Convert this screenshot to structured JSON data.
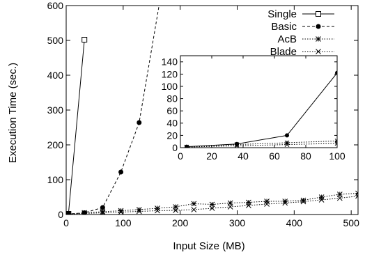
{
  "chart_data": [
    {
      "type": "line",
      "xlabel": "Input Size (MB)",
      "ylabel": "Execution Time (sec.)",
      "xlim": [
        0,
        512
      ],
      "ylim": [
        0,
        600
      ],
      "xticks": [
        0,
        100,
        200,
        300,
        400,
        500
      ],
      "yticks": [
        0,
        100,
        200,
        300,
        400,
        500,
        600
      ],
      "grid": false,
      "legend_position": "top-right",
      "series": [
        {
          "name": "Single",
          "marker": "open-square",
          "dash": "solid",
          "points": [
            [
              1,
              0
            ],
            [
              2,
              1
            ],
            [
              4,
              2
            ],
            [
              32,
              502
            ]
          ]
        },
        {
          "name": "Basic",
          "marker": "filled-circle",
          "dash": "dashed",
          "points": [
            [
              1,
              0
            ],
            [
              2,
              1
            ],
            [
              4,
              1.5
            ],
            [
              32,
              5
            ],
            [
              64,
              20
            ],
            [
              96,
              122
            ],
            [
              128,
              264
            ],
            [
              165,
              620
            ]
          ]
        },
        {
          "name": "AcB",
          "marker": "star",
          "dash": "dotted",
          "points": [
            [
              1,
              0
            ],
            [
              2,
              1
            ],
            [
              4,
              1
            ],
            [
              32,
              5
            ],
            [
              64,
              8
            ],
            [
              96,
              11
            ],
            [
              128,
              14
            ],
            [
              160,
              18
            ],
            [
              192,
              22
            ],
            [
              224,
              31
            ],
            [
              256,
              29
            ],
            [
              288,
              33
            ],
            [
              320,
              35
            ],
            [
              352,
              38
            ],
            [
              384,
              38
            ],
            [
              416,
              41
            ],
            [
              448,
              50
            ],
            [
              480,
              58
            ],
            [
              512,
              61
            ]
          ]
        },
        {
          "name": "Blade",
          "marker": "cross",
          "dash": "dotted",
          "points": [
            [
              1,
              0
            ],
            [
              2,
              1
            ],
            [
              4,
              1
            ],
            [
              32,
              3
            ],
            [
              64,
              5
            ],
            [
              96,
              7
            ],
            [
              128,
              9
            ],
            [
              160,
              11
            ],
            [
              192,
              12
            ],
            [
              224,
              14
            ],
            [
              256,
              18
            ],
            [
              288,
              22
            ],
            [
              320,
              26
            ],
            [
              352,
              30
            ],
            [
              384,
              33
            ],
            [
              416,
              37
            ],
            [
              448,
              42
            ],
            [
              480,
              47
            ],
            [
              512,
              53
            ]
          ]
        }
      ]
    },
    {
      "type": "line",
      "role": "inset",
      "xlim": [
        0,
        100
      ],
      "ylim": [
        0,
        150
      ],
      "xticks": [
        0,
        20,
        40,
        60,
        80,
        100
      ],
      "yticks": [
        0,
        20,
        40,
        60,
        80,
        100,
        120,
        140
      ],
      "grid": false,
      "series": [
        {
          "name": "Basic",
          "marker": "filled-circle",
          "dash": "solid",
          "points": [
            [
              4,
              1.5
            ],
            [
              36,
              6
            ],
            [
              68,
              20
            ],
            [
              100,
              122
            ]
          ]
        },
        {
          "name": "AcB",
          "marker": "star",
          "dash": "dotted",
          "points": [
            [
              4,
              1
            ],
            [
              36,
              5
            ],
            [
              68,
              8
            ],
            [
              100,
              11
            ]
          ]
        },
        {
          "name": "Blade",
          "marker": "cross",
          "dash": "dotted",
          "points": [
            [
              4,
              1
            ],
            [
              36,
              3
            ],
            [
              68,
              5
            ],
            [
              100,
              7
            ]
          ]
        }
      ]
    }
  ]
}
